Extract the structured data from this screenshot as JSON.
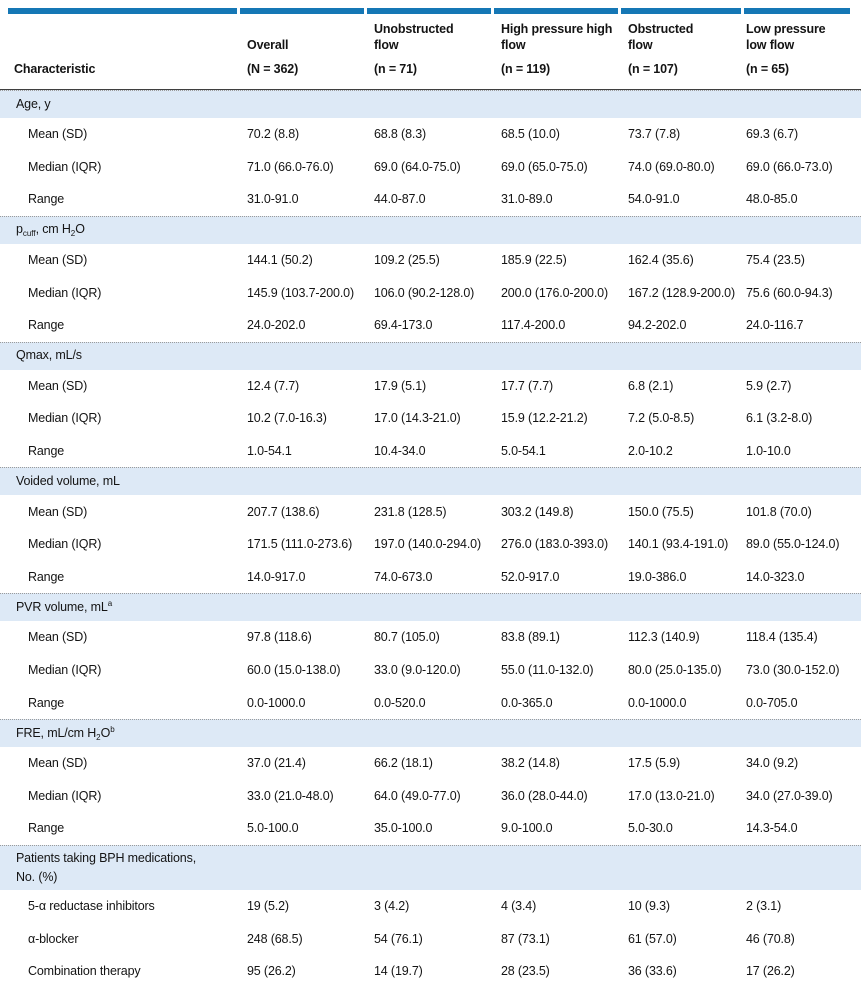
{
  "table": {
    "accent_color": "#1577b5",
    "section_bg": "#dde9f6",
    "header": {
      "characteristic_label": "Characteristic",
      "columns": [
        {
          "name_lines": [
            "Overall"
          ],
          "count": "(N = 362)"
        },
        {
          "name_lines": [
            "Unobstructed",
            "flow"
          ],
          "count": "(n = 71)"
        },
        {
          "name_lines": [
            "High pressure high",
            "flow"
          ],
          "count": "(n = 119)"
        },
        {
          "name_lines": [
            "Obstructed",
            "flow"
          ],
          "count": "(n = 107)"
        },
        {
          "name_lines": [
            "Low pressure",
            "low flow"
          ],
          "count": "(n = 65)"
        }
      ]
    },
    "sections": [
      {
        "label": [
          {
            "t": "Age, y"
          }
        ],
        "rows": [
          {
            "label": "Mean (SD)",
            "values": [
              "70.2 (8.8)",
              "68.8 (8.3)",
              "68.5 (10.0)",
              "73.7 (7.8)",
              "69.3 (6.7)"
            ]
          },
          {
            "label": "Median (IQR)",
            "values": [
              "71.0 (66.0-76.0)",
              "69.0 (64.0-75.0)",
              "69.0 (65.0-75.0)",
              "74.0 (69.0-80.0)",
              "69.0 (66.0-73.0)"
            ]
          },
          {
            "label": "Range",
            "values": [
              "31.0-91.0",
              "44.0-87.0",
              "31.0-89.0",
              "54.0-91.0",
              "48.0-85.0"
            ]
          }
        ]
      },
      {
        "label": [
          {
            "t": "p"
          },
          {
            "sub": "cuff"
          },
          {
            "t": ", cm H"
          },
          {
            "sub": "2"
          },
          {
            "t": "O"
          }
        ],
        "rows": [
          {
            "label": "Mean (SD)",
            "values": [
              "144.1 (50.2)",
              "109.2 (25.5)",
              "185.9 (22.5)",
              "162.4 (35.6)",
              "75.4 (23.5)"
            ]
          },
          {
            "label": "Median (IQR)",
            "values": [
              "145.9 (103.7-200.0)",
              "106.0 (90.2-128.0)",
              "200.0 (176.0-200.0)",
              "167.2 (128.9-200.0)",
              "75.6 (60.0-94.3)"
            ]
          },
          {
            "label": "Range",
            "values": [
              "24.0-202.0",
              "69.4-173.0",
              "117.4-200.0",
              "94.2-202.0",
              "24.0-116.7"
            ]
          }
        ]
      },
      {
        "label": [
          {
            "t": "Qmax, mL/s"
          }
        ],
        "rows": [
          {
            "label": "Mean (SD)",
            "values": [
              "12.4 (7.7)",
              "17.9 (5.1)",
              "17.7 (7.7)",
              "6.8 (2.1)",
              "5.9 (2.7)"
            ]
          },
          {
            "label": "Median (IQR)",
            "values": [
              "10.2 (7.0-16.3)",
              "17.0 (14.3-21.0)",
              "15.9 (12.2-21.2)",
              "7.2 (5.0-8.5)",
              "6.1 (3.2-8.0)"
            ]
          },
          {
            "label": "Range",
            "values": [
              "1.0-54.1",
              "10.4-34.0",
              "5.0-54.1",
              "2.0-10.2",
              "1.0-10.0"
            ]
          }
        ]
      },
      {
        "label": [
          {
            "t": "Voided volume, mL"
          }
        ],
        "rows": [
          {
            "label": "Mean (SD)",
            "values": [
              "207.7 (138.6)",
              "231.8 (128.5)",
              "303.2 (149.8)",
              "150.0 (75.5)",
              "101.8 (70.0)"
            ]
          },
          {
            "label": "Median (IQR)",
            "values": [
              "171.5 (111.0-273.6)",
              "197.0 (140.0-294.0)",
              "276.0 (183.0-393.0)",
              "140.1 (93.4-191.0)",
              "89.0 (55.0-124.0)"
            ]
          },
          {
            "label": "Range",
            "values": [
              "14.0-917.0",
              "74.0-673.0",
              "52.0-917.0",
              "19.0-386.0",
              "14.0-323.0"
            ]
          }
        ]
      },
      {
        "label": [
          {
            "t": "PVR volume, mL"
          },
          {
            "sup": "a"
          }
        ],
        "rows": [
          {
            "label": "Mean (SD)",
            "values": [
              "97.8 (118.6)",
              "80.7 (105.0)",
              "83.8 (89.1)",
              "112.3 (140.9)",
              "118.4 (135.4)"
            ]
          },
          {
            "label": "Median (IQR)",
            "values": [
              "60.0 (15.0-138.0)",
              "33.0 (9.0-120.0)",
              "55.0 (11.0-132.0)",
              "80.0 (25.0-135.0)",
              "73.0 (30.0-152.0)"
            ]
          },
          {
            "label": "Range",
            "values": [
              "0.0-1000.0",
              "0.0-520.0",
              "0.0-365.0",
              "0.0-1000.0",
              "0.0-705.0"
            ]
          }
        ]
      },
      {
        "label": [
          {
            "t": "FRE, mL/cm H"
          },
          {
            "sub": "2"
          },
          {
            "t": "O"
          },
          {
            "sup": "b"
          }
        ],
        "rows": [
          {
            "label": "Mean (SD)",
            "values": [
              "37.0 (21.4)",
              "66.2 (18.1)",
              "38.2 (14.8)",
              "17.5 (5.9)",
              "34.0 (9.2)"
            ]
          },
          {
            "label": "Median (IQR)",
            "values": [
              "33.0 (21.0-48.0)",
              "64.0 (49.0-77.0)",
              "36.0 (28.0-44.0)",
              "17.0 (13.0-21.0)",
              "34.0 (27.0-39.0)"
            ]
          },
          {
            "label": "Range",
            "values": [
              "5.0-100.0",
              "35.0-100.0",
              "9.0-100.0",
              "5.0-30.0",
              "14.3-54.0"
            ]
          }
        ]
      },
      {
        "label": [
          {
            "t": "Patients taking BPH medications,"
          },
          {
            "br": true
          },
          {
            "t": "No. (%)"
          }
        ],
        "rows": [
          {
            "label": "5-α reductase inhibitors",
            "values": [
              "19 (5.2)",
              "3 (4.2)",
              "4 (3.4)",
              "10 (9.3)",
              "2 (3.1)"
            ]
          },
          {
            "label": "α-blocker",
            "values": [
              "248 (68.5)",
              "54 (76.1)",
              "87 (73.1)",
              "61 (57.0)",
              "46 (70.8)"
            ]
          },
          {
            "label": "Combination therapy",
            "values": [
              "95 (26.2)",
              "14 (19.7)",
              "28 (23.5)",
              "36 (33.6)",
              "17 (26.2)"
            ]
          }
        ]
      }
    ]
  }
}
